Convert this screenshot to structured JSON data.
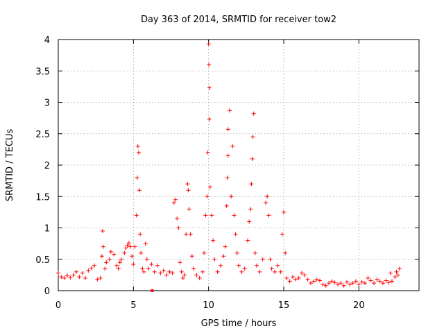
{
  "chart_data": {
    "type": "scatter",
    "title": "Day 363 of 2014, SRMTID for receiver tow2",
    "xlabel": "GPS time / hours",
    "ylabel": "SRMTID / TECUs",
    "xlim": [
      0,
      24
    ],
    "ylim": [
      0,
      4
    ],
    "xticks": [
      0,
      5,
      10,
      15,
      20
    ],
    "xtick_labels": [
      "0",
      "5",
      "10",
      "15",
      "20"
    ],
    "yticks": [
      0,
      0.5,
      1,
      1.5,
      2,
      2.5,
      3,
      3.5,
      4
    ],
    "ytick_labels": [
      "0",
      "0.5",
      "1",
      "1.5",
      "2",
      "2.5",
      "3",
      "3.5",
      "4"
    ],
    "grid": true,
    "marker": "+",
    "series": [
      {
        "name": "SRMTID",
        "color": "#ff0000",
        "points": [
          [
            0.0,
            0.28
          ],
          [
            0.2,
            0.22
          ],
          [
            0.4,
            0.2
          ],
          [
            0.6,
            0.24
          ],
          [
            0.8,
            0.21
          ],
          [
            1.0,
            0.25
          ],
          [
            1.2,
            0.3
          ],
          [
            1.4,
            0.22
          ],
          [
            1.6,
            0.28
          ],
          [
            1.8,
            0.2
          ],
          [
            2.0,
            0.32
          ],
          [
            2.2,
            0.36
          ],
          [
            2.4,
            0.4
          ],
          [
            2.6,
            0.18
          ],
          [
            2.8,
            0.2
          ],
          [
            2.9,
            0.55
          ],
          [
            2.95,
            0.95
          ],
          [
            3.0,
            0.7
          ],
          [
            3.1,
            0.35
          ],
          [
            3.2,
            0.45
          ],
          [
            3.4,
            0.5
          ],
          [
            3.5,
            0.62
          ],
          [
            3.7,
            0.58
          ],
          [
            3.9,
            0.4
          ],
          [
            4.0,
            0.35
          ],
          [
            4.1,
            0.45
          ],
          [
            4.2,
            0.5
          ],
          [
            4.4,
            0.6
          ],
          [
            4.5,
            0.68
          ],
          [
            4.6,
            0.72
          ],
          [
            4.7,
            0.76
          ],
          [
            4.8,
            0.7
          ],
          [
            4.9,
            0.55
          ],
          [
            5.0,
            0.42
          ],
          [
            5.1,
            0.7
          ],
          [
            5.2,
            1.2
          ],
          [
            5.25,
            1.8
          ],
          [
            5.3,
            2.3
          ],
          [
            5.35,
            2.2
          ],
          [
            5.4,
            1.6
          ],
          [
            5.45,
            0.9
          ],
          [
            5.5,
            0.6
          ],
          [
            5.6,
            0.35
          ],
          [
            5.7,
            0.3
          ],
          [
            5.8,
            0.75
          ],
          [
            5.9,
            0.5
          ],
          [
            6.0,
            0.35
          ],
          [
            6.2,
            0.42
          ],
          [
            6.4,
            0.3
          ],
          [
            6.6,
            0.4
          ],
          [
            6.8,
            0.28
          ],
          [
            7.0,
            0.32
          ],
          [
            7.2,
            0.25
          ],
          [
            7.4,
            0.3
          ],
          [
            7.6,
            0.28
          ],
          [
            7.7,
            1.4
          ],
          [
            7.8,
            1.45
          ],
          [
            7.9,
            1.15
          ],
          [
            8.0,
            1.0
          ],
          [
            8.1,
            0.45
          ],
          [
            8.2,
            0.3
          ],
          [
            8.3,
            0.2
          ],
          [
            8.4,
            0.25
          ],
          [
            8.5,
            0.9
          ],
          [
            8.6,
            1.7
          ],
          [
            8.65,
            1.6
          ],
          [
            8.7,
            1.3
          ],
          [
            8.8,
            0.9
          ],
          [
            8.9,
            0.55
          ],
          [
            9.0,
            0.35
          ],
          [
            9.2,
            0.25
          ],
          [
            9.4,
            0.2
          ],
          [
            9.6,
            0.3
          ],
          [
            9.7,
            0.6
          ],
          [
            9.8,
            1.2
          ],
          [
            9.9,
            1.5
          ],
          [
            9.95,
            2.2
          ],
          [
            10.0,
            3.93
          ],
          [
            10.02,
            3.6
          ],
          [
            10.05,
            3.23
          ],
          [
            10.05,
            2.73
          ],
          [
            10.1,
            1.65
          ],
          [
            10.2,
            1.2
          ],
          [
            10.3,
            0.8
          ],
          [
            10.4,
            0.5
          ],
          [
            10.6,
            0.3
          ],
          [
            10.8,
            0.4
          ],
          [
            11.0,
            0.55
          ],
          [
            11.1,
            0.7
          ],
          [
            11.2,
            1.35
          ],
          [
            11.25,
            1.8
          ],
          [
            11.3,
            2.15
          ],
          [
            11.3,
            2.57
          ],
          [
            11.4,
            2.87
          ],
          [
            11.5,
            1.5
          ],
          [
            11.6,
            2.3
          ],
          [
            11.7,
            1.2
          ],
          [
            11.8,
            0.9
          ],
          [
            11.9,
            0.6
          ],
          [
            12.0,
            0.4
          ],
          [
            12.2,
            0.3
          ],
          [
            12.4,
            0.35
          ],
          [
            12.6,
            0.8
          ],
          [
            12.7,
            1.1
          ],
          [
            12.8,
            1.3
          ],
          [
            12.85,
            1.7
          ],
          [
            12.9,
            2.1
          ],
          [
            12.95,
            2.45
          ],
          [
            13.0,
            2.82
          ],
          [
            13.1,
            0.6
          ],
          [
            13.2,
            0.4
          ],
          [
            13.4,
            0.3
          ],
          [
            13.6,
            0.5
          ],
          [
            13.8,
            1.4
          ],
          [
            13.9,
            1.5
          ],
          [
            14.0,
            1.2
          ],
          [
            14.1,
            0.5
          ],
          [
            14.2,
            0.35
          ],
          [
            14.4,
            0.3
          ],
          [
            14.6,
            0.4
          ],
          [
            14.8,
            0.3
          ],
          [
            14.9,
            0.9
          ],
          [
            15.0,
            1.25
          ],
          [
            15.1,
            0.6
          ],
          [
            15.2,
            0.2
          ],
          [
            15.4,
            0.15
          ],
          [
            15.6,
            0.22
          ],
          [
            15.8,
            0.18
          ],
          [
            16.0,
            0.2
          ],
          [
            16.2,
            0.28
          ],
          [
            16.4,
            0.25
          ],
          [
            16.6,
            0.18
          ],
          [
            16.8,
            0.12
          ],
          [
            17.0,
            0.15
          ],
          [
            17.2,
            0.18
          ],
          [
            17.4,
            0.16
          ],
          [
            17.6,
            0.1
          ],
          [
            17.8,
            0.08
          ],
          [
            18.0,
            0.12
          ],
          [
            18.2,
            0.15
          ],
          [
            18.4,
            0.13
          ],
          [
            18.6,
            0.1
          ],
          [
            18.8,
            0.12
          ],
          [
            19.0,
            0.08
          ],
          [
            19.2,
            0.14
          ],
          [
            19.4,
            0.1
          ],
          [
            19.6,
            0.12
          ],
          [
            19.8,
            0.15
          ],
          [
            20.0,
            0.1
          ],
          [
            20.2,
            0.14
          ],
          [
            20.4,
            0.12
          ],
          [
            20.6,
            0.2
          ],
          [
            20.8,
            0.16
          ],
          [
            21.0,
            0.12
          ],
          [
            21.2,
            0.18
          ],
          [
            21.4,
            0.15
          ],
          [
            21.6,
            0.12
          ],
          [
            21.8,
            0.16
          ],
          [
            22.0,
            0.13
          ],
          [
            22.1,
            0.28
          ],
          [
            22.2,
            0.15
          ],
          [
            22.4,
            0.22
          ],
          [
            22.5,
            0.3
          ],
          [
            22.6,
            0.25
          ],
          [
            22.7,
            0.35
          ]
        ]
      }
    ],
    "extra_points": [
      [
        6.25,
        -0.01
      ]
    ]
  }
}
